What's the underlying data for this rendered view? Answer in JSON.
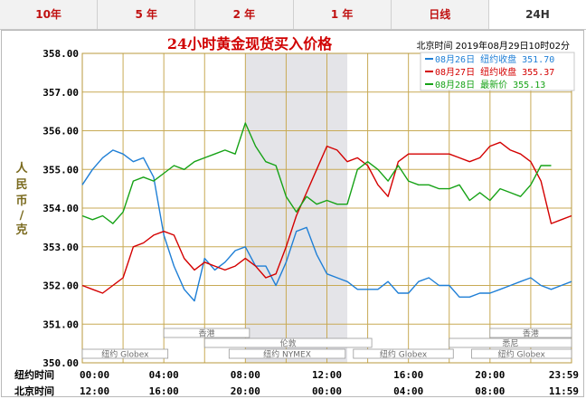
{
  "tabs": [
    {
      "label": "10年",
      "active": false
    },
    {
      "label": "5 年",
      "active": false
    },
    {
      "label": "2 年",
      "active": false
    },
    {
      "label": "1 年",
      "active": false
    },
    {
      "label": "日线",
      "active": false
    },
    {
      "label": "24H",
      "active": true
    }
  ],
  "header": {
    "title": "24小时黄金现货买入价格",
    "timestamp": "北京时间  2019年08月29日10时02分"
  },
  "axis": {
    "unit_label": [
      "人",
      "民",
      "币",
      "/",
      "克"
    ],
    "row_labels": [
      "纽约时间",
      "北京时间"
    ]
  },
  "markets": [
    {
      "name": "香港",
      "from": 4.0,
      "to": 8.2,
      "row": 0
    },
    {
      "name": "伦敦",
      "from": 6.0,
      "to": 14.2,
      "row": 1
    },
    {
      "name": "纽约 Globex",
      "from": 0,
      "to": 4.2,
      "row": 2
    },
    {
      "name": "纽约 NYMEX",
      "from": 7.2,
      "to": 12.9,
      "row": 2
    },
    {
      "name": "纽约 Globex",
      "from": 13.3,
      "to": 18.2,
      "row": 2
    },
    {
      "name": "香港",
      "from": 20.0,
      "to": 24.0,
      "row": 0
    },
    {
      "name": "悉尼",
      "from": 18.0,
      "to": 24.0,
      "row": 1
    },
    {
      "name": "纽约 Globex",
      "from": 19.1,
      "to": 24.0,
      "row": 2
    }
  ],
  "chart_data": {
    "type": "line",
    "title": "24小时黄金现货买入价格",
    "ylabel": "人民币/克",
    "ylim": [
      350.0,
      358.0
    ],
    "y_ticks": [
      "350.00",
      "351.00",
      "352.00",
      "353.00",
      "354.00",
      "355.00",
      "356.00",
      "357.00",
      "358.00"
    ],
    "xlim": [
      0,
      24
    ],
    "x_ticks_ny": [
      "00:00",
      "04:00",
      "08:00",
      "12:00",
      "16:00",
      "20:00",
      "23:59"
    ],
    "x_ticks_bj": [
      "12:00",
      "16:00",
      "20:00",
      "00:00",
      "04:00",
      "08:00",
      "11:59"
    ],
    "grid": true,
    "shaded_range": [
      8.0,
      13.0
    ],
    "legend_position": "top-right",
    "series": [
      {
        "name": "08月26日",
        "legend_label": "08月26日  纽约收盘 351.70",
        "color": "#1f7fd6",
        "x": [
          0,
          0.5,
          1,
          1.5,
          2,
          2.5,
          3,
          3.5,
          4,
          4.5,
          5,
          5.5,
          6,
          6.5,
          7,
          7.5,
          8,
          8.5,
          9,
          9.5,
          10,
          10.5,
          11,
          11.5,
          12,
          12.5,
          13,
          13.5,
          14,
          14.5,
          15,
          15.5,
          16,
          16.5,
          17,
          17.5,
          18,
          18.5,
          19,
          19.5,
          20,
          20.5,
          21,
          21.5,
          22,
          22.5,
          23,
          23.5,
          24
        ],
        "y": [
          354.6,
          355.0,
          355.3,
          355.5,
          355.4,
          355.2,
          355.3,
          354.8,
          353.3,
          352.5,
          351.9,
          351.6,
          352.7,
          352.4,
          352.6,
          352.9,
          353.0,
          352.5,
          352.5,
          352.0,
          352.6,
          353.4,
          353.5,
          352.8,
          352.3,
          352.2,
          352.1,
          351.9,
          351.9,
          351.9,
          352.1,
          351.8,
          351.8,
          352.1,
          352.2,
          352.0,
          352.0,
          351.7,
          351.7,
          351.8,
          351.8,
          351.9,
          352.0,
          352.1,
          352.2,
          352.0,
          351.9,
          352.0,
          352.1
        ]
      },
      {
        "name": "08月27日",
        "legend_label": "08月27日  纽约收盘 355.37",
        "color": "#d40000",
        "x": [
          0,
          0.5,
          1,
          1.5,
          2,
          2.5,
          3,
          3.5,
          4,
          4.5,
          5,
          5.5,
          6,
          6.5,
          7,
          7.5,
          8,
          8.5,
          9,
          9.5,
          10,
          10.5,
          11,
          11.5,
          12,
          12.5,
          13,
          13.5,
          14,
          14.5,
          15,
          15.5,
          16,
          16.5,
          17,
          17.5,
          18,
          18.5,
          19,
          19.5,
          20,
          20.5,
          21,
          21.5,
          22,
          22.5,
          23,
          23.5,
          24
        ],
        "y": [
          352.0,
          351.9,
          351.8,
          352.0,
          352.2,
          353.0,
          353.1,
          353.3,
          353.4,
          353.3,
          352.7,
          352.4,
          352.6,
          352.5,
          352.4,
          352.5,
          352.7,
          352.5,
          352.2,
          352.3,
          353.0,
          353.8,
          354.4,
          355.0,
          355.6,
          355.5,
          355.2,
          355.3,
          355.1,
          354.6,
          354.3,
          355.2,
          355.4,
          355.4,
          355.4,
          355.4,
          355.4,
          355.3,
          355.2,
          355.3,
          355.6,
          355.7,
          355.5,
          355.4,
          355.2,
          354.7,
          353.6,
          353.7,
          353.8
        ]
      },
      {
        "name": "08月28日",
        "legend_label": "08月28日  最新价 355.13",
        "color": "#16a216",
        "x": [
          0,
          0.5,
          1,
          1.5,
          2,
          2.5,
          3,
          3.5,
          4,
          4.5,
          5,
          5.5,
          6,
          6.5,
          7,
          7.5,
          8,
          8.5,
          9,
          9.5,
          10,
          10.5,
          11,
          11.5,
          12,
          12.5,
          13,
          13.5,
          14,
          14.5,
          15,
          15.5,
          16,
          16.5,
          17,
          17.5,
          18,
          18.5,
          19,
          19.5,
          20,
          20.5,
          21,
          21.5,
          22,
          22.5,
          23
        ],
        "y": [
          353.8,
          353.7,
          353.8,
          353.6,
          353.9,
          354.7,
          354.8,
          354.7,
          354.9,
          355.1,
          355.0,
          355.2,
          355.3,
          355.4,
          355.5,
          355.4,
          356.2,
          355.6,
          355.2,
          355.1,
          354.3,
          353.9,
          354.3,
          354.1,
          354.2,
          354.1,
          354.1,
          355.0,
          355.2,
          355.0,
          354.7,
          355.1,
          354.7,
          354.6,
          354.6,
          354.5,
          354.5,
          354.6,
          354.2,
          354.4,
          354.2,
          354.5,
          354.4,
          354.3,
          354.6,
          355.1,
          355.1
        ]
      }
    ]
  }
}
